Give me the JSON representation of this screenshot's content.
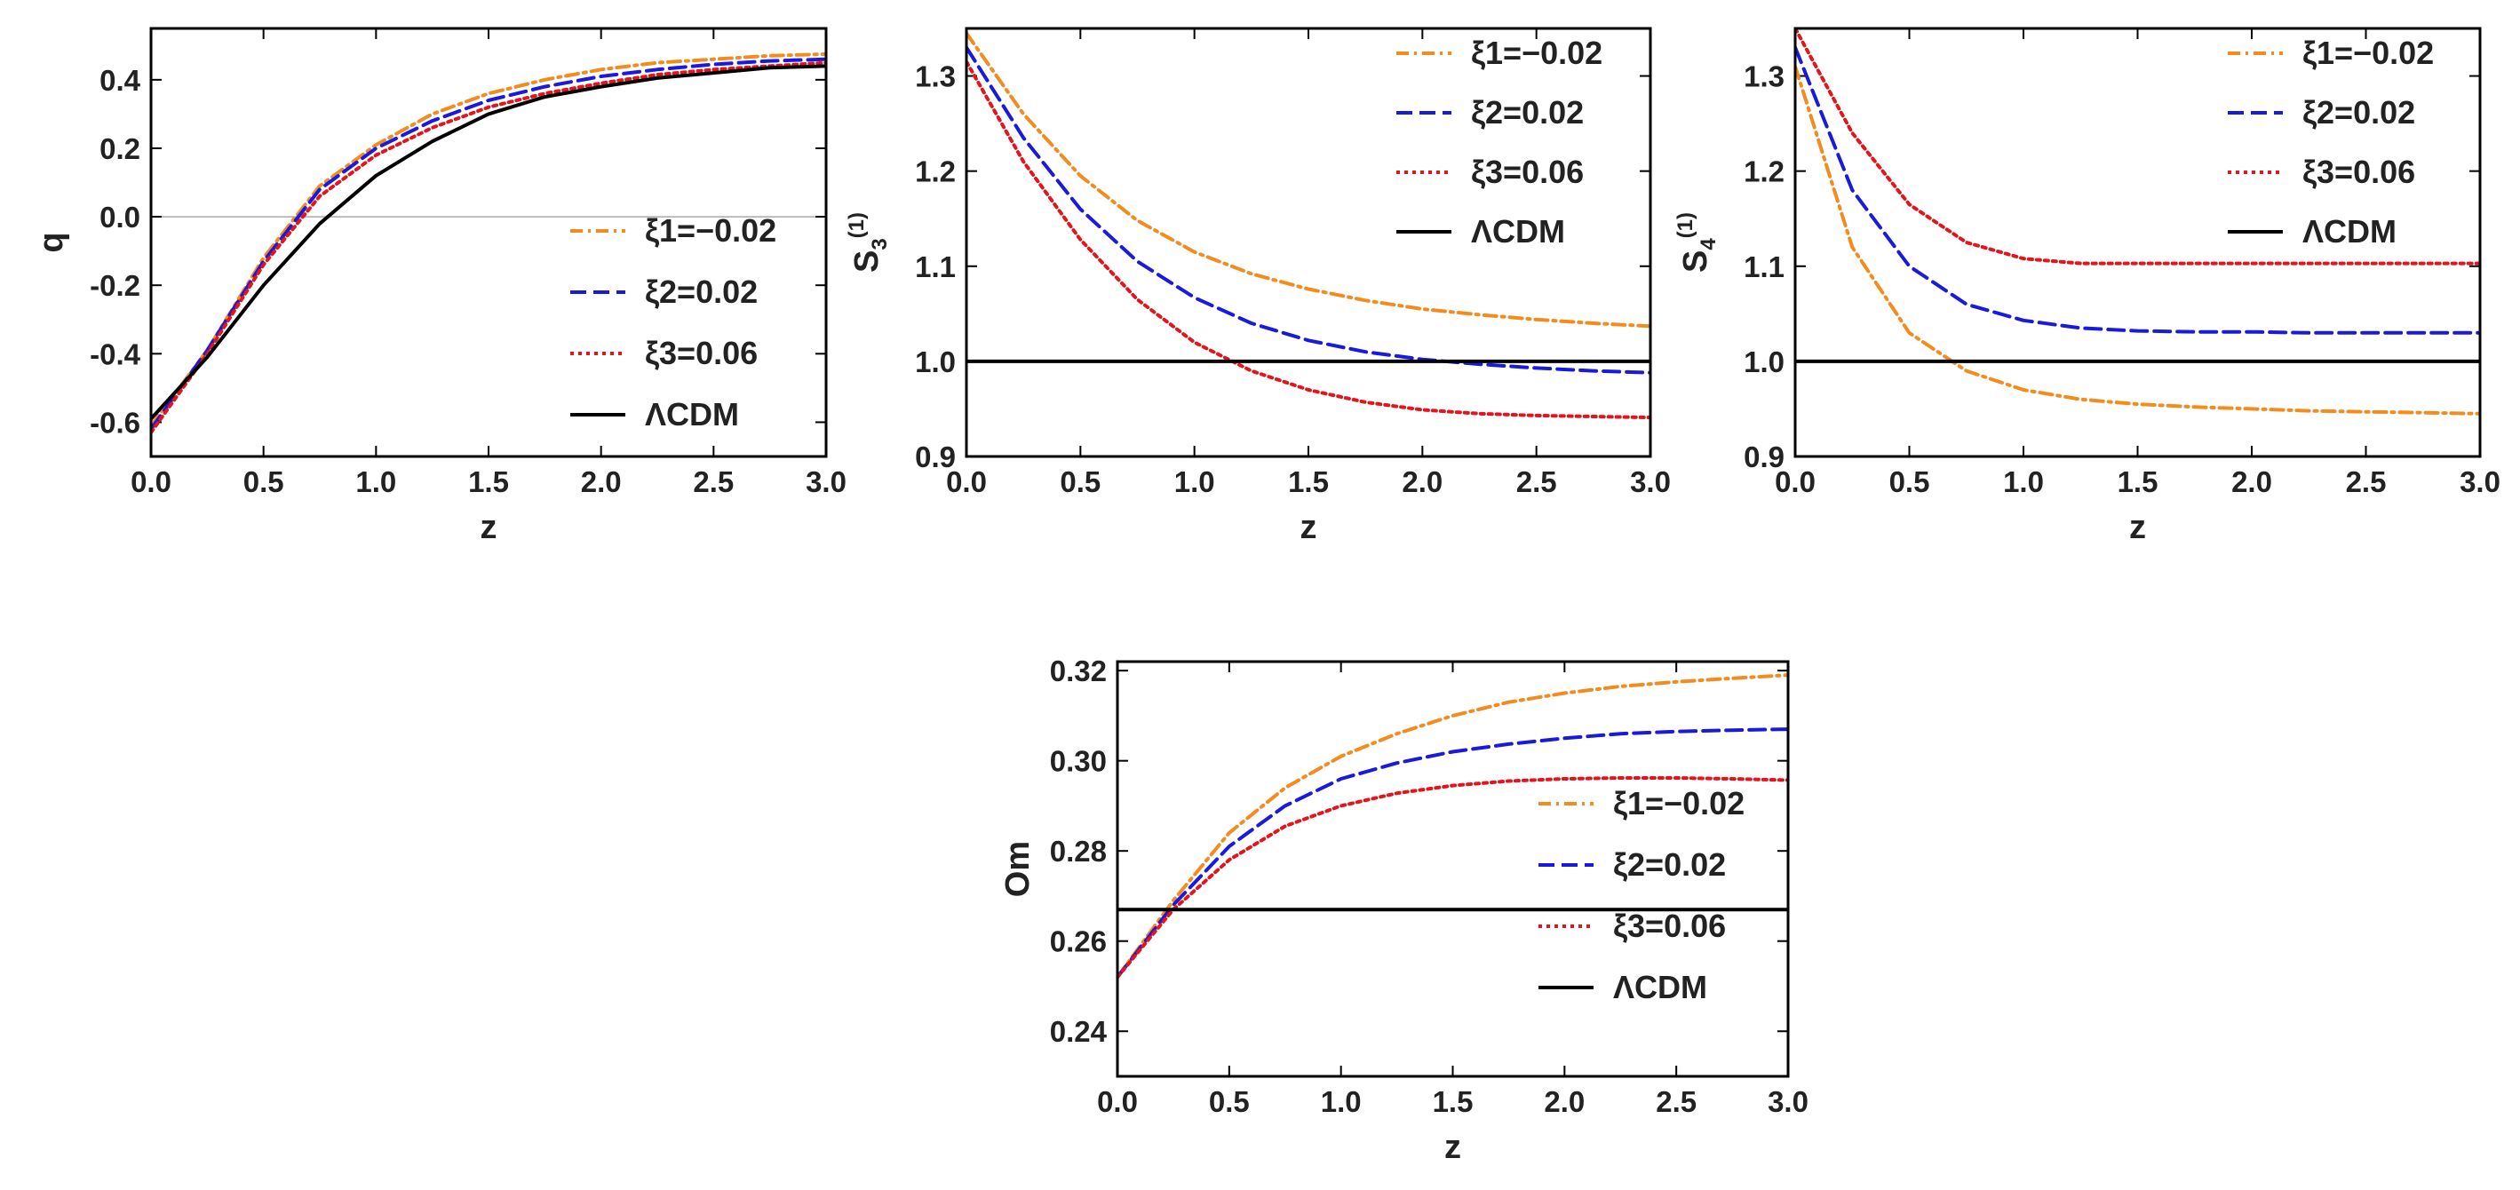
{
  "chart_data": [
    {
      "id": "q",
      "type": "line",
      "xlabel": "z",
      "ylabel": "q",
      "xlim": [
        0,
        3
      ],
      "ylim": [
        -0.7,
        0.55
      ],
      "xticks": [
        "0.0",
        "0.5",
        "1.0",
        "1.5",
        "2.0",
        "2.5",
        "3.0"
      ],
      "yticks": [
        "-0.6",
        "-0.4",
        "-0.2",
        "0.0",
        "0.2",
        "0.4"
      ],
      "zero_line": true,
      "x": [
        0,
        0.25,
        0.5,
        0.75,
        1.0,
        1.25,
        1.5,
        1.75,
        2.0,
        2.25,
        2.5,
        2.75,
        3.0
      ],
      "series": [
        {
          "name": "ξ1=−0.02",
          "color": "#f28c1f",
          "dash": "dashdot",
          "values": [
            -0.61,
            -0.39,
            -0.12,
            0.09,
            0.21,
            0.3,
            0.36,
            0.4,
            0.43,
            0.45,
            0.46,
            0.47,
            0.475
          ]
        },
        {
          "name": "ξ2=0.02",
          "color": "#1a1adb",
          "dash": "dashed",
          "values": [
            -0.62,
            -0.39,
            -0.13,
            0.08,
            0.2,
            0.28,
            0.34,
            0.38,
            0.41,
            0.43,
            0.445,
            0.455,
            0.46
          ]
        },
        {
          "name": "ξ3=0.06",
          "color": "#e3141c",
          "dash": "dotted",
          "values": [
            -0.63,
            -0.4,
            -0.14,
            0.06,
            0.18,
            0.26,
            0.32,
            0.36,
            0.39,
            0.415,
            0.43,
            0.44,
            0.45
          ]
        },
        {
          "name": "ΛCDM",
          "color": "#000000",
          "dash": "solid",
          "values": [
            -0.59,
            -0.41,
            -0.2,
            -0.02,
            0.12,
            0.22,
            0.3,
            0.35,
            0.38,
            0.405,
            0.42,
            0.435,
            0.44
          ]
        }
      ]
    },
    {
      "id": "s3",
      "type": "line",
      "xlabel": "z",
      "ylabel": "S",
      "ylabel_sub": "3",
      "ylabel_sup": "(1)",
      "xlim": [
        0,
        3
      ],
      "ylim": [
        0.9,
        1.35
      ],
      "xticks": [
        "0.0",
        "0.5",
        "1.0",
        "1.5",
        "2.0",
        "2.5",
        "3.0"
      ],
      "yticks": [
        "0.9",
        "1.0",
        "1.1",
        "1.2",
        "1.3"
      ],
      "zero_line": false,
      "x": [
        0,
        0.25,
        0.5,
        0.75,
        1.0,
        1.25,
        1.5,
        1.75,
        2.0,
        2.25,
        2.5,
        2.75,
        3.0
      ],
      "series": [
        {
          "name": "ξ1=−0.02",
          "color": "#f28c1f",
          "dash": "dashdot",
          "values": [
            1.345,
            1.26,
            1.195,
            1.148,
            1.115,
            1.092,
            1.076,
            1.064,
            1.055,
            1.049,
            1.044,
            1.04,
            1.037
          ]
        },
        {
          "name": "ξ2=0.02",
          "color": "#1a1adb",
          "dash": "dashed",
          "values": [
            1.33,
            1.235,
            1.16,
            1.105,
            1.067,
            1.04,
            1.022,
            1.01,
            1.002,
            0.997,
            0.993,
            0.99,
            0.988
          ]
        },
        {
          "name": "ξ3=0.06",
          "color": "#e3141c",
          "dash": "dotted",
          "values": [
            1.315,
            1.21,
            1.128,
            1.065,
            1.02,
            0.99,
            0.97,
            0.957,
            0.949,
            0.945,
            0.943,
            0.942,
            0.941
          ]
        },
        {
          "name": "ΛCDM",
          "color": "#000000",
          "dash": "solid",
          "values": [
            1.0,
            1.0,
            1.0,
            1.0,
            1.0,
            1.0,
            1.0,
            1.0,
            1.0,
            1.0,
            1.0,
            1.0,
            1.0
          ]
        }
      ]
    },
    {
      "id": "s4",
      "type": "line",
      "xlabel": "z",
      "ylabel": "S",
      "ylabel_sub": "4",
      "ylabel_sup": "(1)",
      "xlim": [
        0,
        3
      ],
      "ylim": [
        0.9,
        1.35
      ],
      "xticks": [
        "0.0",
        "0.5",
        "1.0",
        "1.5",
        "2.0",
        "2.5",
        "3.0"
      ],
      "yticks": [
        "0.9",
        "1.0",
        "1.1",
        "1.2",
        "1.3"
      ],
      "zero_line": false,
      "x": [
        0,
        0.25,
        0.5,
        0.75,
        1.0,
        1.25,
        1.5,
        1.75,
        2.0,
        2.25,
        2.5,
        2.75,
        3.0
      ],
      "series": [
        {
          "name": "ξ1=−0.02",
          "color": "#f28c1f",
          "dash": "dashdot",
          "values": [
            1.31,
            1.12,
            1.03,
            0.99,
            0.97,
            0.96,
            0.955,
            0.952,
            0.95,
            0.948,
            0.947,
            0.946,
            0.945
          ]
        },
        {
          "name": "ξ2=0.02",
          "color": "#1a1adb",
          "dash": "dashed",
          "values": [
            1.33,
            1.18,
            1.1,
            1.06,
            1.043,
            1.035,
            1.032,
            1.031,
            1.031,
            1.03,
            1.03,
            1.03,
            1.03
          ]
        },
        {
          "name": "ξ3=0.06",
          "color": "#e3141c",
          "dash": "dotted",
          "values": [
            1.35,
            1.24,
            1.165,
            1.125,
            1.108,
            1.103,
            1.103,
            1.103,
            1.103,
            1.103,
            1.103,
            1.103,
            1.103
          ]
        },
        {
          "name": "ΛCDM",
          "color": "#000000",
          "dash": "solid",
          "values": [
            1.0,
            1.0,
            1.0,
            1.0,
            1.0,
            1.0,
            1.0,
            1.0,
            1.0,
            1.0,
            1.0,
            1.0,
            1.0
          ]
        }
      ]
    },
    {
      "id": "om",
      "type": "line",
      "xlabel": "z",
      "ylabel": "Om",
      "xlim": [
        0,
        3
      ],
      "ylim": [
        0.23,
        0.322
      ],
      "xticks": [
        "0.0",
        "0.5",
        "1.0",
        "1.5",
        "2.0",
        "2.5",
        "3.0"
      ],
      "yticks": [
        "0.24",
        "0.26",
        "0.28",
        "0.30",
        "0.32"
      ],
      "zero_line": false,
      "x": [
        0,
        0.25,
        0.5,
        0.75,
        1.0,
        1.25,
        1.5,
        1.75,
        2.0,
        2.25,
        2.5,
        2.75,
        3.0
      ],
      "series": [
        {
          "name": "ξ1=−0.02",
          "color": "#f28c1f",
          "dash": "dashdot",
          "values": [
            0.252,
            0.269,
            0.284,
            0.294,
            0.301,
            0.306,
            0.31,
            0.313,
            0.315,
            0.3165,
            0.3175,
            0.3183,
            0.319
          ]
        },
        {
          "name": "ξ2=0.02",
          "color": "#1a1adb",
          "dash": "dashed",
          "values": [
            0.252,
            0.268,
            0.281,
            0.29,
            0.296,
            0.2995,
            0.302,
            0.3037,
            0.305,
            0.306,
            0.3065,
            0.3068,
            0.307
          ]
        },
        {
          "name": "ξ3=0.06",
          "color": "#e3141c",
          "dash": "dotted",
          "values": [
            0.252,
            0.267,
            0.278,
            0.2855,
            0.29,
            0.2928,
            0.2945,
            0.2955,
            0.296,
            0.2962,
            0.2962,
            0.296,
            0.2957
          ]
        },
        {
          "name": "ΛCDM",
          "color": "#000000",
          "dash": "solid",
          "values": [
            0.267,
            0.267,
            0.267,
            0.267,
            0.267,
            0.267,
            0.267,
            0.267,
            0.267,
            0.267,
            0.267,
            0.267,
            0.267
          ]
        }
      ]
    }
  ]
}
